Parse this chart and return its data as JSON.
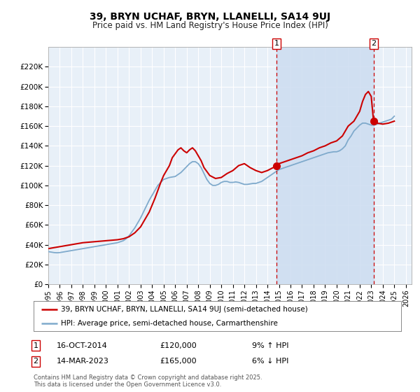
{
  "title": "39, BRYN UCHAF, BRYN, LLANELLI, SA14 9UJ",
  "subtitle": "Price paid vs. HM Land Registry's House Price Index (HPI)",
  "legend_entry1": "39, BRYN UCHAF, BRYN, LLANELLI, SA14 9UJ (semi-detached house)",
  "legend_entry2": "HPI: Average price, semi-detached house, Carmarthenshire",
  "red_color": "#cc0000",
  "blue_color": "#7faacc",
  "background_color": "#e8f0f8",
  "grid_color": "#ffffff",
  "annotation1_date": "16-OCT-2014",
  "annotation1_price": "£120,000",
  "annotation1_hpi": "9% ↑ HPI",
  "annotation2_date": "14-MAR-2023",
  "annotation2_price": "£165,000",
  "annotation2_hpi": "6% ↓ HPI",
  "footnote": "Contains HM Land Registry data © Crown copyright and database right 2025.\nThis data is licensed under the Open Government Licence v3.0.",
  "ylim": [
    0,
    240000
  ],
  "yticks": [
    0,
    20000,
    40000,
    60000,
    80000,
    100000,
    120000,
    140000,
    160000,
    180000,
    200000,
    220000
  ],
  "ytick_labels": [
    "£0",
    "£20K",
    "£40K",
    "£60K",
    "£80K",
    "£100K",
    "£120K",
    "£140K",
    "£160K",
    "£180K",
    "£200K",
    "£220K"
  ],
  "xlim_start": 1995.0,
  "xlim_end": 2026.5,
  "marker1_x": 2014.79,
  "marker1_y": 120000,
  "marker2_x": 2023.2,
  "marker2_y": 165000,
  "vline1_x": 2014.79,
  "vline2_x": 2023.2,
  "shade_start": 2014.79,
  "shade_end": 2023.2,
  "hpi_x": [
    1995.0,
    1995.25,
    1995.5,
    1995.75,
    1996.0,
    1996.25,
    1996.5,
    1996.75,
    1997.0,
    1997.25,
    1997.5,
    1997.75,
    1998.0,
    1998.25,
    1998.5,
    1998.75,
    1999.0,
    1999.25,
    1999.5,
    1999.75,
    2000.0,
    2000.25,
    2000.5,
    2000.75,
    2001.0,
    2001.25,
    2001.5,
    2001.75,
    2002.0,
    2002.25,
    2002.5,
    2002.75,
    2003.0,
    2003.25,
    2003.5,
    2003.75,
    2004.0,
    2004.25,
    2004.5,
    2004.75,
    2005.0,
    2005.25,
    2005.5,
    2005.75,
    2006.0,
    2006.25,
    2006.5,
    2006.75,
    2007.0,
    2007.25,
    2007.5,
    2007.75,
    2008.0,
    2008.25,
    2008.5,
    2008.75,
    2009.0,
    2009.25,
    2009.5,
    2009.75,
    2010.0,
    2010.25,
    2010.5,
    2010.75,
    2011.0,
    2011.25,
    2011.5,
    2011.75,
    2012.0,
    2012.25,
    2012.5,
    2012.75,
    2013.0,
    2013.25,
    2013.5,
    2013.75,
    2014.0,
    2014.25,
    2014.5,
    2014.75,
    2015.0,
    2015.25,
    2015.5,
    2015.75,
    2016.0,
    2016.25,
    2016.5,
    2016.75,
    2017.0,
    2017.25,
    2017.5,
    2017.75,
    2018.0,
    2018.25,
    2018.5,
    2018.75,
    2019.0,
    2019.25,
    2019.5,
    2019.75,
    2020.0,
    2020.25,
    2020.5,
    2020.75,
    2021.0,
    2021.25,
    2021.5,
    2021.75,
    2022.0,
    2022.25,
    2022.5,
    2022.75,
    2023.0,
    2023.25,
    2023.5,
    2023.75,
    2024.0,
    2024.25,
    2024.5,
    2024.75,
    2025.0
  ],
  "hpi_y": [
    33000,
    32500,
    32000,
    31800,
    32000,
    32500,
    33000,
    33500,
    34000,
    34500,
    35000,
    35500,
    36000,
    36500,
    37000,
    37500,
    38000,
    38500,
    39000,
    39500,
    40000,
    40500,
    41000,
    41500,
    42000,
    43000,
    44000,
    46000,
    49000,
    53000,
    57000,
    62000,
    67000,
    73000,
    79000,
    85000,
    90000,
    95000,
    100000,
    103000,
    106000,
    107000,
    108000,
    108500,
    109000,
    111000,
    113000,
    116000,
    119000,
    122000,
    124000,
    124000,
    122000,
    118000,
    112000,
    106000,
    102000,
    100000,
    100000,
    101000,
    103000,
    104000,
    104000,
    103000,
    103000,
    103500,
    103000,
    102000,
    101000,
    101000,
    101500,
    102000,
    102000,
    103000,
    104000,
    106000,
    108000,
    110000,
    112000,
    114000,
    116000,
    117000,
    118000,
    119000,
    120000,
    121000,
    122000,
    123000,
    124000,
    125000,
    126000,
    127000,
    128000,
    129000,
    130000,
    131000,
    132000,
    133000,
    133500,
    134000,
    134000,
    135000,
    137000,
    140000,
    146000,
    150000,
    155000,
    158000,
    161000,
    163000,
    163000,
    162000,
    161000,
    161000,
    162000,
    163000,
    164000,
    165000,
    166000,
    167000,
    170000
  ],
  "red_x": [
    1995.0,
    1995.5,
    1996.0,
    1996.5,
    1997.0,
    1997.5,
    1998.0,
    1998.5,
    1999.0,
    1999.5,
    2000.0,
    2000.5,
    2001.0,
    2001.5,
    2002.0,
    2002.5,
    2003.0,
    2003.5,
    2003.75,
    2004.0,
    2004.25,
    2004.5,
    2004.75,
    2005.0,
    2005.25,
    2005.5,
    2005.75,
    2006.0,
    2006.25,
    2006.5,
    2006.75,
    2007.0,
    2007.25,
    2007.5,
    2007.75,
    2008.0,
    2008.25,
    2008.5,
    2009.0,
    2009.5,
    2010.0,
    2010.5,
    2011.0,
    2011.5,
    2012.0,
    2012.5,
    2013.0,
    2013.5,
    2014.0,
    2014.5,
    2014.79,
    2015.0,
    2015.5,
    2016.0,
    2016.5,
    2017.0,
    2017.5,
    2018.0,
    2018.5,
    2019.0,
    2019.5,
    2020.0,
    2020.5,
    2021.0,
    2021.5,
    2022.0,
    2022.25,
    2022.5,
    2022.75,
    2023.0,
    2023.2,
    2023.5,
    2024.0,
    2024.5,
    2025.0
  ],
  "red_y": [
    36000,
    37000,
    38000,
    39000,
    40000,
    41000,
    42000,
    42500,
    43000,
    43500,
    44000,
    44500,
    45000,
    46000,
    48000,
    52000,
    58000,
    68000,
    73000,
    80000,
    87000,
    95000,
    103000,
    110000,
    115000,
    120000,
    128000,
    132000,
    136000,
    138000,
    135000,
    133000,
    136000,
    138000,
    135000,
    130000,
    125000,
    118000,
    110000,
    107000,
    108000,
    112000,
    115000,
    120000,
    122000,
    118000,
    115000,
    113000,
    115000,
    118000,
    120000,
    122000,
    124000,
    126000,
    128000,
    130000,
    133000,
    135000,
    138000,
    140000,
    143000,
    145000,
    150000,
    160000,
    165000,
    175000,
    185000,
    192000,
    195000,
    190000,
    165000,
    163000,
    162000,
    163000,
    165000
  ]
}
